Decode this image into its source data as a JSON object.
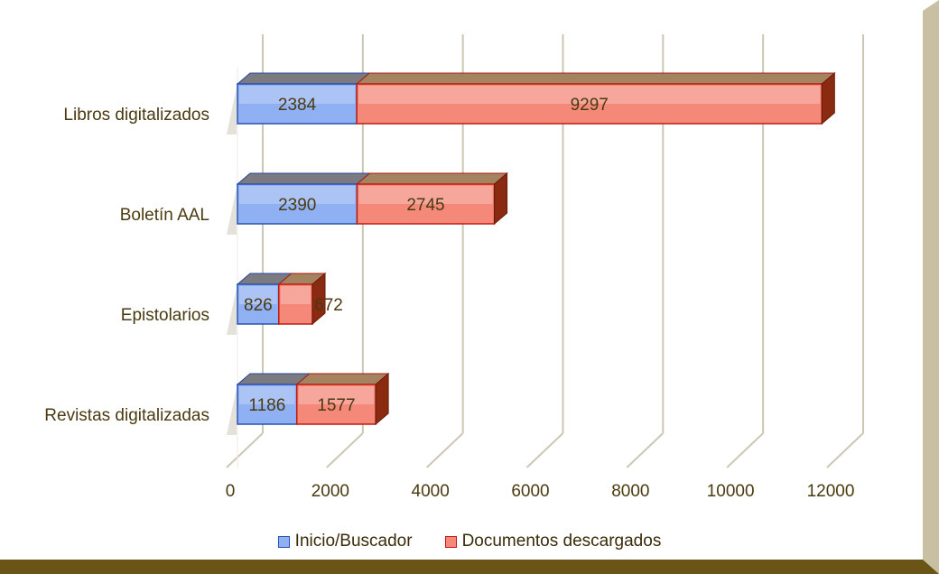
{
  "chart_data": {
    "type": "bar",
    "orientation": "horizontal",
    "stacked": true,
    "categories": [
      "Libros digitalizados",
      "Boletín AAL",
      "Epistolarios",
      "Revistas digitalizadas"
    ],
    "series": [
      {
        "name": "Inicio/Buscador",
        "values": [
          2384,
          2390,
          826,
          1186
        ],
        "color": "#8fb0f2",
        "edge": "#2850b0"
      },
      {
        "name": "Documentos descargados",
        "values": [
          9297,
          2745,
          672,
          1577
        ],
        "color": "#f4897a",
        "edge": "#c01a10"
      }
    ],
    "data_labels": {
      "Inicio/Buscador": [
        "2384",
        "2390",
        "826",
        "1186"
      ],
      "Documentos descargados": [
        "9297",
        "2745",
        "672",
        "1577"
      ]
    },
    "xlim": [
      0,
      12000
    ],
    "x_ticks": [
      "0",
      "2000",
      "4000",
      "6000",
      "8000",
      "10000",
      "12000"
    ],
    "grid": true,
    "legend_position": "bottom",
    "title": "",
    "xlabel": "",
    "ylabel": ""
  },
  "colors": {
    "frame_dark": "#6b5418",
    "frame_light": "#d7cfb8",
    "grid": "#ccc6b4",
    "text": "#4a3a10"
  }
}
